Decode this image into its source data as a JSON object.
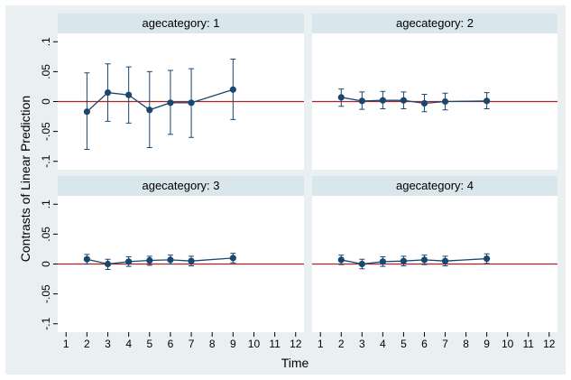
{
  "y_label": "Contrasts of Linear Prediction",
  "x_label": "Time",
  "chart_data": [
    {
      "type": "line",
      "title": "agecategory: 1",
      "color": "#1a476f",
      "hline": 0,
      "hline_color": "#b0202a",
      "xlim": [
        0.6,
        12.4
      ],
      "ylim": [
        -0.114,
        0.114
      ],
      "yticks": [
        {
          "value": -0.1,
          "label": "-.1"
        },
        {
          "value": -0.05,
          "label": "-.05"
        },
        0,
        {
          "value": 0.05,
          "label": ".05"
        },
        {
          "value": 0.1,
          "label": ".1"
        }
      ],
      "x": [
        2,
        3,
        4,
        5,
        6,
        7,
        9
      ],
      "series": [
        {
          "values": [
            -0.017,
            0.015,
            0.011,
            -0.014,
            -0.002,
            -0.002,
            0.02
          ],
          "ci_lower": [
            -0.08,
            -0.033,
            -0.036,
            -0.077,
            -0.055,
            -0.06,
            -0.03
          ],
          "ci_upper": [
            0.048,
            0.063,
            0.058,
            0.05,
            0.052,
            0.055,
            0.071
          ]
        }
      ]
    },
    {
      "type": "line",
      "title": "agecategory: 2",
      "color": "#1a476f",
      "hline": 0,
      "hline_color": "#b0202a",
      "xlim": [
        0.6,
        12.4
      ],
      "ylim": [
        -0.114,
        0.114
      ],
      "x": [
        2,
        3,
        4,
        5,
        6,
        7,
        9
      ],
      "series": [
        {
          "values": [
            0.007,
            0.001,
            0.002,
            0.002,
            -0.003,
            0,
            0.001
          ],
          "ci_lower": [
            -0.008,
            -0.013,
            -0.012,
            -0.012,
            -0.017,
            -0.014,
            -0.012
          ],
          "ci_upper": [
            0.021,
            0.016,
            0.017,
            0.016,
            0.012,
            0.014,
            0.015
          ]
        }
      ]
    },
    {
      "type": "line",
      "title": "agecategory: 3",
      "color": "#1a476f",
      "hline": 0,
      "hline_color": "#b0202a",
      "xlim": [
        0.6,
        12.4
      ],
      "ylim": [
        -0.114,
        0.114
      ],
      "yticks": [
        {
          "value": -0.1,
          "label": "-.1"
        },
        {
          "value": -0.05,
          "label": "-.05"
        },
        0,
        {
          "value": 0.05,
          "label": ".05"
        },
        {
          "value": 0.1,
          "label": ".1"
        }
      ],
      "xticks": [
        1,
        2,
        3,
        4,
        5,
        6,
        7,
        8,
        9,
        10,
        11,
        12
      ],
      "x": [
        2,
        3,
        4,
        5,
        6,
        7,
        9
      ],
      "series": [
        {
          "values": [
            0.008,
            0,
            0.004,
            0.006,
            0.007,
            0.005,
            0.01
          ],
          "ci_lower": [
            0,
            -0.009,
            -0.004,
            -0.002,
            0,
            -0.003,
            0.002
          ],
          "ci_upper": [
            0.016,
            0.008,
            0.012,
            0.013,
            0.015,
            0.013,
            0.018
          ]
        }
      ]
    },
    {
      "type": "line",
      "title": "agecategory: 4",
      "color": "#1a476f",
      "hline": 0,
      "hline_color": "#b0202a",
      "xlim": [
        0.6,
        12.4
      ],
      "ylim": [
        -0.114,
        0.114
      ],
      "xticks": [
        1,
        2,
        3,
        4,
        5,
        6,
        7,
        8,
        9,
        10,
        11,
        12
      ],
      "x": [
        2,
        3,
        4,
        5,
        6,
        7,
        9
      ],
      "series": [
        {
          "values": [
            0.007,
            0,
            0.004,
            0.005,
            0.007,
            0.005,
            0.009
          ],
          "ci_lower": [
            -0.001,
            -0.008,
            -0.004,
            -0.003,
            -0.001,
            -0.003,
            0.001
          ],
          "ci_upper": [
            0.015,
            0.008,
            0.012,
            0.013,
            0.015,
            0.013,
            0.017
          ]
        }
      ]
    }
  ]
}
